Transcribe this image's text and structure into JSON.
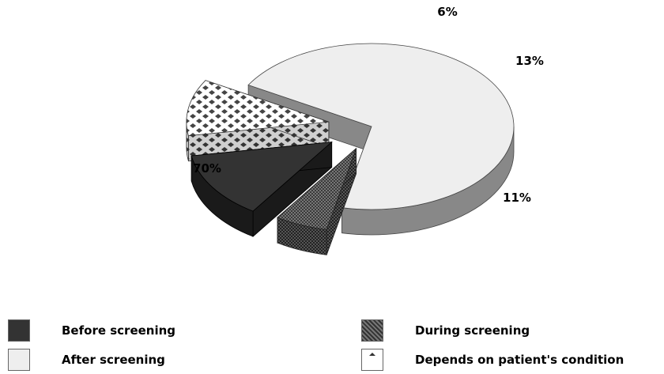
{
  "chart_data": {
    "type": "pie",
    "title": "",
    "style": "3d-exploded",
    "slices": [
      {
        "label": "After screening",
        "value": 70,
        "display": "70%",
        "color": "#eeeeee"
      },
      {
        "label": "During screening",
        "value": 6,
        "display": "6%",
        "color": "#444444"
      },
      {
        "label": "Before screening",
        "value": 13,
        "display": "13%",
        "color": "#333333"
      },
      {
        "label": "Depends on patient's condition",
        "value": 11,
        "display": "11%",
        "color": "#555555"
      }
    ],
    "legend_placement": "bottom"
  },
  "legend": {
    "items": [
      {
        "label": "Before screening",
        "swatch": "solid-dark"
      },
      {
        "label": "During screening",
        "swatch": "dark-hatch"
      },
      {
        "label": "After screening",
        "swatch": "light"
      },
      {
        "label": "Depends on patient's condition",
        "swatch": "checker"
      }
    ]
  }
}
